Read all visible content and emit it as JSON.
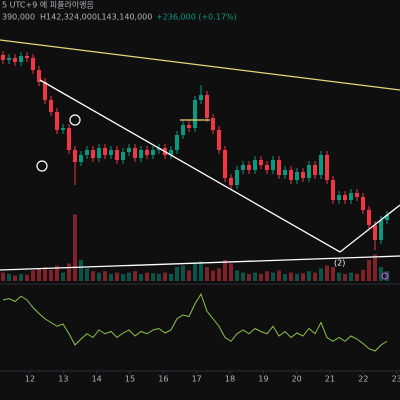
{
  "header": {
    "title": "5 UTC+9 에 피플라이앵음",
    "open": "390,000",
    "high": "H142,324,000",
    "low": "L143,140,000",
    "change": "+236,000 (+0.17%)"
  },
  "annotation": "(2)",
  "chart_data": {
    "type": "candlestick",
    "up_color": "#089981",
    "down_color": "#f23645",
    "line_color": "#8bc34a",
    "ylim": [
      0,
      255
    ],
    "volume_ylim": [
      0,
      100
    ],
    "oscillator_ylim": [
      0,
      100
    ],
    "xlim": [
      11.1,
      23.1
    ],
    "xticks": [
      12,
      13,
      14,
      15,
      16,
      17,
      18,
      19,
      20,
      21,
      22,
      23
    ],
    "open": [
      210,
      205,
      207,
      203,
      209,
      207,
      195,
      183,
      165,
      153,
      135,
      137,
      115,
      103,
      110,
      115,
      107,
      117,
      110,
      115,
      105,
      113,
      117,
      107,
      115,
      110,
      115,
      117,
      110,
      115,
      130,
      140,
      137,
      165,
      170,
      147,
      135,
      115,
      87,
      80,
      95,
      100,
      95,
      105,
      100,
      95,
      105,
      90,
      95,
      85,
      93,
      87,
      100,
      90,
      110,
      85,
      65,
      70,
      65,
      72,
      68,
      55,
      40,
      25,
      45
    ],
    "high": [
      214,
      211,
      211,
      213,
      213,
      211,
      199,
      187,
      169,
      157,
      141,
      141,
      119,
      114,
      119,
      119,
      121,
      121,
      119,
      119,
      117,
      121,
      121,
      119,
      119,
      119,
      121,
      121,
      119,
      134,
      144,
      144,
      169,
      180,
      174,
      151,
      139,
      119,
      91,
      99,
      104,
      104,
      109,
      109,
      104,
      109,
      109,
      99,
      99,
      97,
      97,
      104,
      104,
      114,
      114,
      89,
      74,
      74,
      76,
      76,
      72,
      59,
      44,
      49,
      54
    ],
    "low": [
      201,
      201,
      199,
      199,
      203,
      191,
      179,
      161,
      149,
      131,
      131,
      111,
      80,
      99,
      106,
      103,
      103,
      106,
      106,
      101,
      101,
      109,
      103,
      103,
      106,
      106,
      111,
      106,
      106,
      111,
      126,
      133,
      133,
      161,
      143,
      131,
      111,
      83,
      76,
      76,
      91,
      91,
      91,
      96,
      91,
      91,
      86,
      86,
      81,
      81,
      83,
      83,
      86,
      86,
      81,
      61,
      61,
      61,
      61,
      64,
      51,
      36,
      15,
      21,
      41
    ],
    "close": [
      205,
      207,
      203,
      209,
      207,
      195,
      183,
      165,
      153,
      135,
      137,
      115,
      103,
      110,
      115,
      107,
      117,
      110,
      115,
      105,
      113,
      117,
      107,
      115,
      110,
      115,
      117,
      110,
      115,
      130,
      140,
      137,
      165,
      170,
      147,
      135,
      115,
      87,
      80,
      95,
      100,
      95,
      105,
      100,
      95,
      105,
      90,
      95,
      85,
      93,
      87,
      100,
      90,
      110,
      85,
      65,
      70,
      65,
      72,
      68,
      55,
      40,
      25,
      45,
      50
    ],
    "volume": [
      12,
      10,
      8,
      10,
      9,
      15,
      18,
      20,
      16,
      22,
      12,
      25,
      95,
      30,
      18,
      14,
      12,
      14,
      10,
      12,
      10,
      12,
      14,
      10,
      12,
      11,
      10,
      12,
      10,
      20,
      22,
      15,
      25,
      28,
      20,
      15,
      18,
      30,
      25,
      15,
      12,
      10,
      12,
      10,
      14,
      12,
      15,
      10,
      12,
      10,
      11,
      14,
      12,
      18,
      22,
      20,
      12,
      10,
      12,
      10,
      16,
      30,
      38,
      20,
      14
    ],
    "oscillator": [
      80,
      82,
      78,
      85,
      80,
      70,
      62,
      55,
      50,
      45,
      48,
      35,
      20,
      28,
      35,
      30,
      40,
      35,
      38,
      30,
      36,
      40,
      32,
      38,
      35,
      40,
      42,
      36,
      40,
      55,
      60,
      58,
      75,
      88,
      65,
      55,
      45,
      30,
      25,
      35,
      40,
      35,
      42,
      38,
      35,
      45,
      32,
      38,
      30,
      36,
      32,
      42,
      35,
      50,
      30,
      25,
      30,
      25,
      32,
      28,
      22,
      15,
      12,
      20,
      25
    ]
  }
}
